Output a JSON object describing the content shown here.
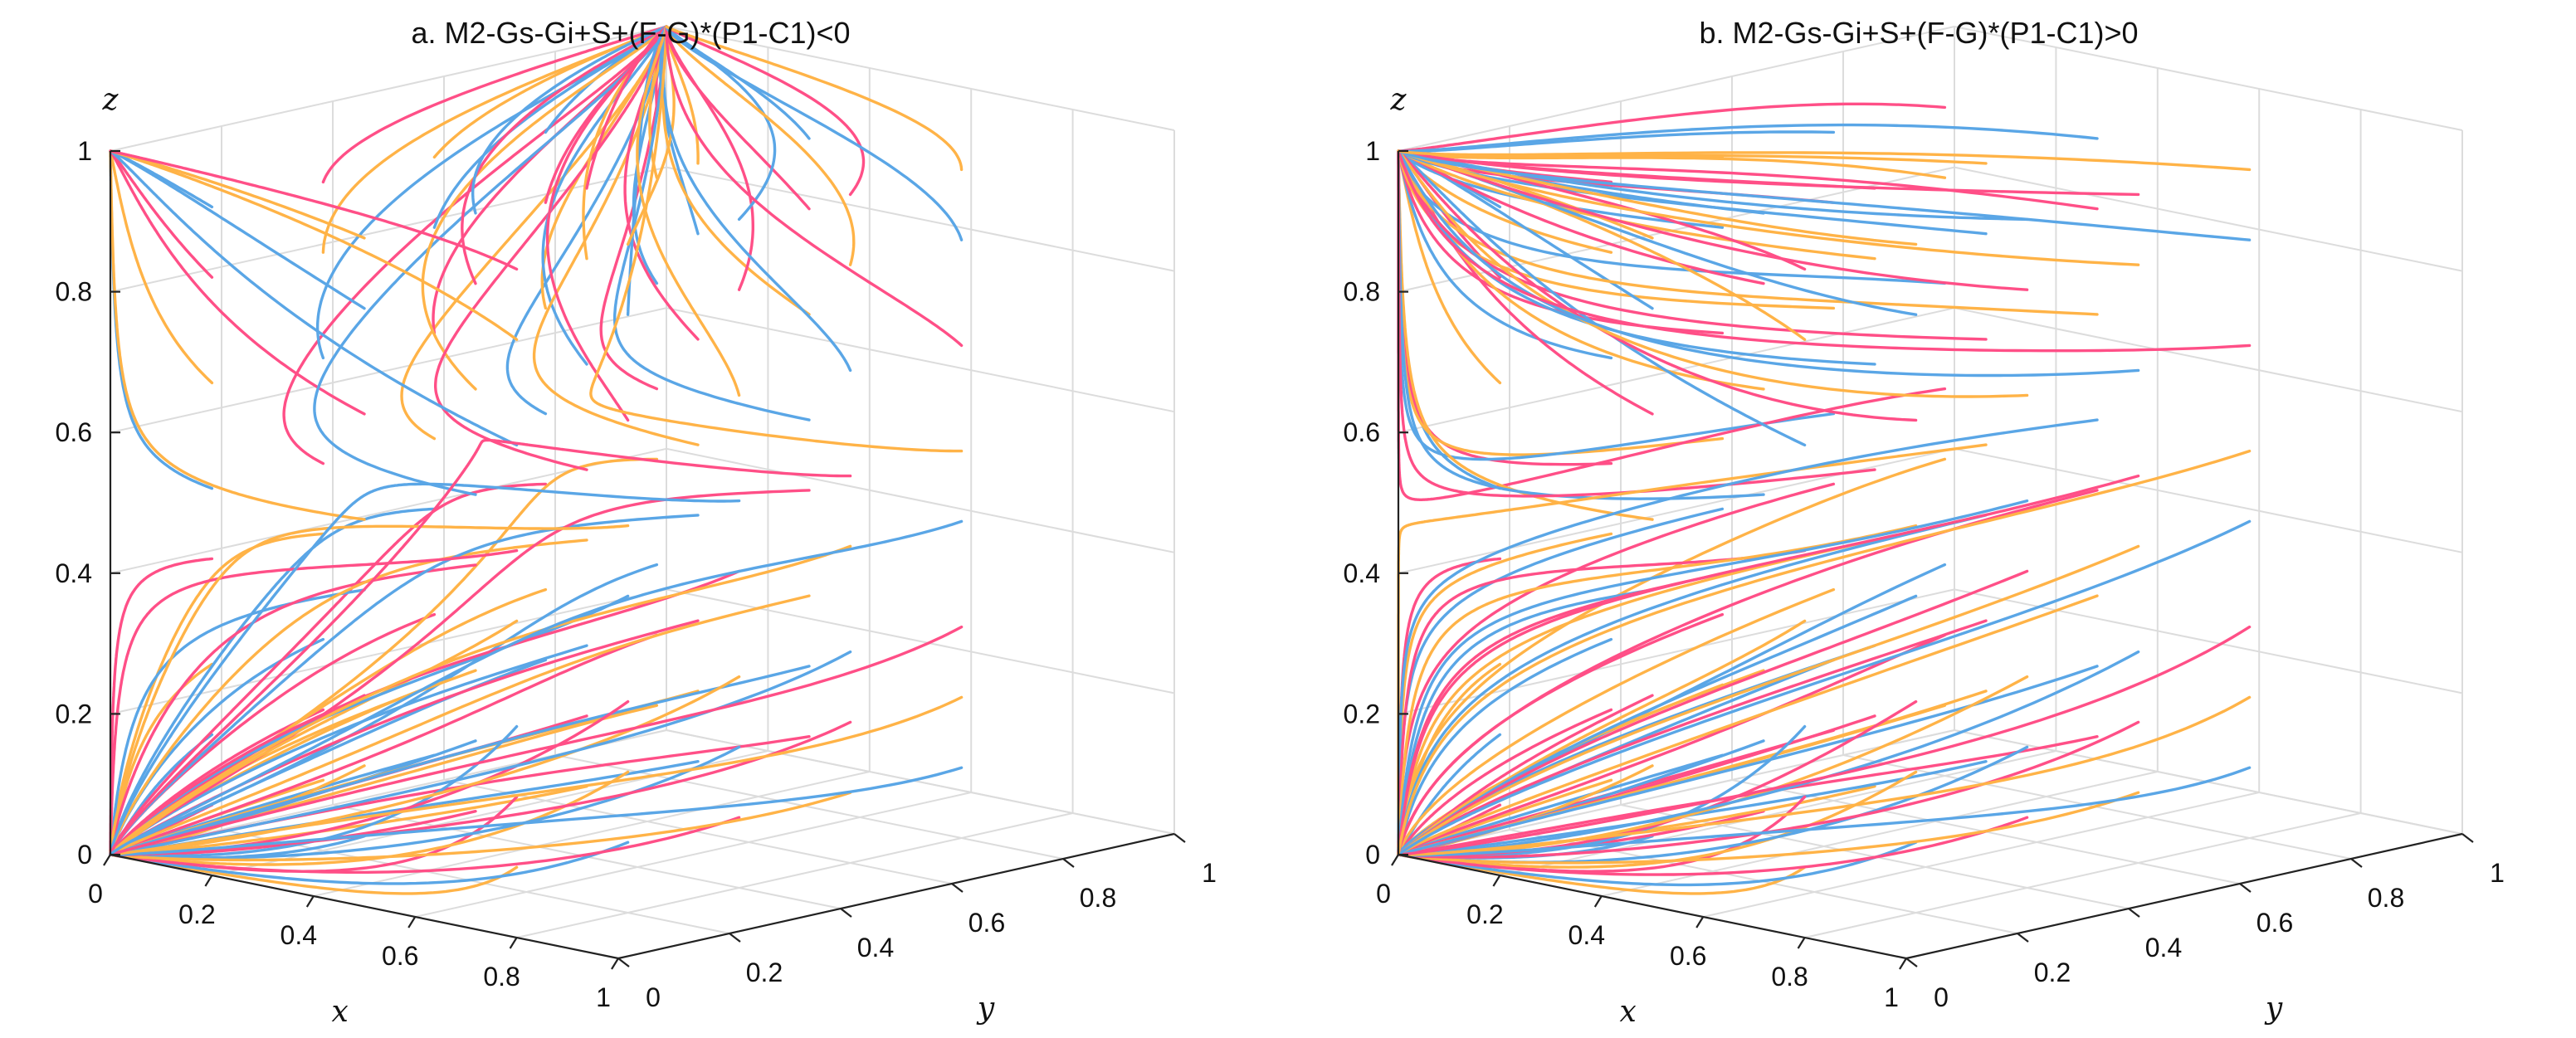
{
  "chart_data": [
    {
      "type": "line",
      "title": "a. M2-Gs-Gi+S+(F-G)*(P1-C1)<0",
      "xlabel": "x",
      "ylabel": "y",
      "zlabel": "z",
      "xlim": [
        0,
        1
      ],
      "ylim": [
        0,
        1
      ],
      "zlim": [
        0,
        1
      ],
      "xticks": [
        "0",
        "0.2",
        "0.4",
        "0.6",
        "0.8",
        "1"
      ],
      "yticks": [
        "0",
        "0.2",
        "0.4",
        "0.6",
        "0.8",
        "1"
      ],
      "zticks": [
        "0",
        "0.2",
        "0.4",
        "0.6",
        "0.8",
        "1"
      ],
      "grid": true,
      "series_colors": [
        "#ff4f87",
        "#5aa6e6",
        "#ffb347"
      ],
      "behavior": "bistable",
      "attractors": [
        [
          0,
          0,
          0
        ],
        [
          0,
          1,
          1
        ]
      ],
      "separatrix_z": 0.5,
      "initial_x": [
        0.2,
        0.5,
        0.8
      ],
      "initial_y": [
        0,
        0.2,
        0.4,
        0.6,
        0.8
      ],
      "initial_z": [
        0.1,
        0.2,
        0.3,
        0.45,
        0.55,
        0.7,
        0.85,
        0.95
      ]
    },
    {
      "type": "line",
      "title": "b. M2-Gs-Gi+S+(F-G)*(P1-C1)>0",
      "xlabel": "x",
      "ylabel": "y",
      "zlabel": "z",
      "xlim": [
        0,
        1
      ],
      "ylim": [
        0,
        1
      ],
      "zlim": [
        0,
        1
      ],
      "xticks": [
        "0",
        "0.2",
        "0.4",
        "0.6",
        "0.8",
        "1"
      ],
      "yticks": [
        "0",
        "0.2",
        "0.4",
        "0.6",
        "0.8",
        "1"
      ],
      "zticks": [
        "0",
        "0.2",
        "0.4",
        "0.6",
        "0.8",
        "1"
      ],
      "grid": true,
      "series_colors": [
        "#ff4f87",
        "#5aa6e6",
        "#ffb347"
      ],
      "behavior": "bistable",
      "attractors": [
        [
          0,
          0,
          0
        ],
        [
          0,
          0,
          1
        ]
      ],
      "separatrix_z": 0.5,
      "initial_x": [
        0.2,
        0.5,
        0.8
      ],
      "initial_y": [
        0,
        0.2,
        0.4,
        0.6,
        0.8
      ],
      "initial_z": [
        0.1,
        0.2,
        0.3,
        0.45,
        0.55,
        0.7,
        0.85,
        0.95
      ]
    }
  ]
}
